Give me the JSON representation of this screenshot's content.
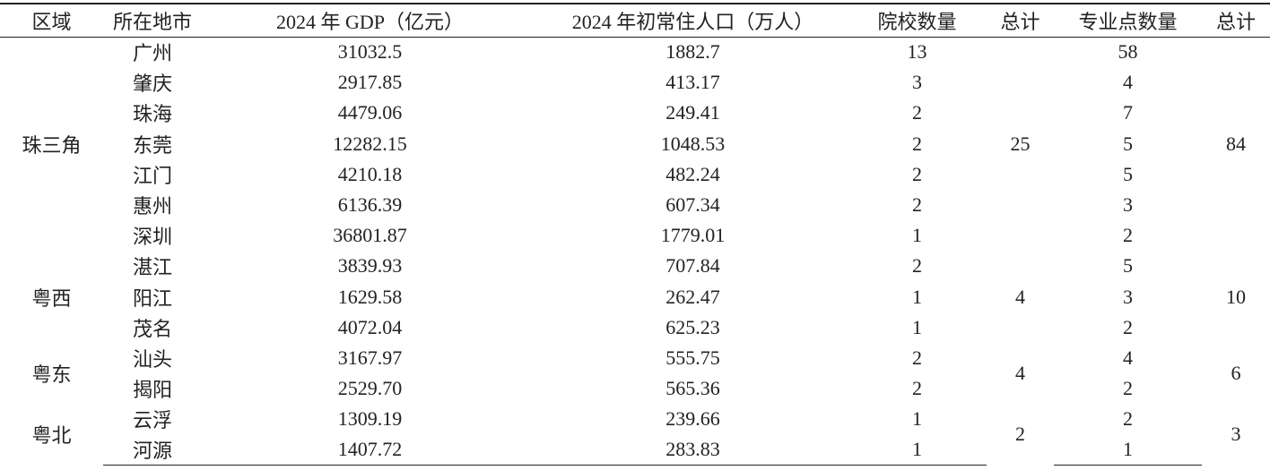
{
  "table": {
    "header": [
      "区域",
      "所在地市",
      "2024 年 GDP（亿元）",
      "2024 年初常住人口（万人）",
      "院校数量",
      "总计",
      "专业点数量",
      "总计"
    ],
    "groups": [
      {
        "region": "珠三角",
        "school_total": "25",
        "major_total": "84",
        "rows": [
          [
            "广州",
            "31032.5",
            "1882.7",
            "13",
            "58"
          ],
          [
            "肇庆",
            "2917.85",
            "413.17",
            "3",
            "4"
          ],
          [
            "珠海",
            "4479.06",
            "249.41",
            "2",
            "7"
          ],
          [
            "东莞",
            "12282.15",
            "1048.53",
            "2",
            "5"
          ],
          [
            "江门",
            "4210.18",
            "482.24",
            "2",
            "5"
          ],
          [
            "惠州",
            "6136.39",
            "607.34",
            "2",
            "3"
          ],
          [
            "深圳",
            "36801.87",
            "1779.01",
            "1",
            "2"
          ]
        ]
      },
      {
        "region": "粤西",
        "school_total": "4",
        "major_total": "10",
        "rows": [
          [
            "湛江",
            "3839.93",
            "707.84",
            "2",
            "5"
          ],
          [
            "阳江",
            "1629.58",
            "262.47",
            "1",
            "3"
          ],
          [
            "茂名",
            "4072.04",
            "625.23",
            "1",
            "2"
          ]
        ]
      },
      {
        "region": "粤东",
        "school_total": "4",
        "major_total": "6",
        "rows": [
          [
            "汕头",
            "3167.97",
            "555.75",
            "2",
            "4"
          ],
          [
            "揭阳",
            "2529.70",
            "565.36",
            "2",
            "2"
          ]
        ]
      },
      {
        "region": "粤北",
        "school_total": "2",
        "major_total": "3",
        "rows": [
          [
            "云浮",
            "1309.19",
            "239.66",
            "1",
            "2"
          ],
          [
            "河源",
            "1407.72",
            "283.83",
            "1",
            "1"
          ]
        ]
      }
    ]
  }
}
